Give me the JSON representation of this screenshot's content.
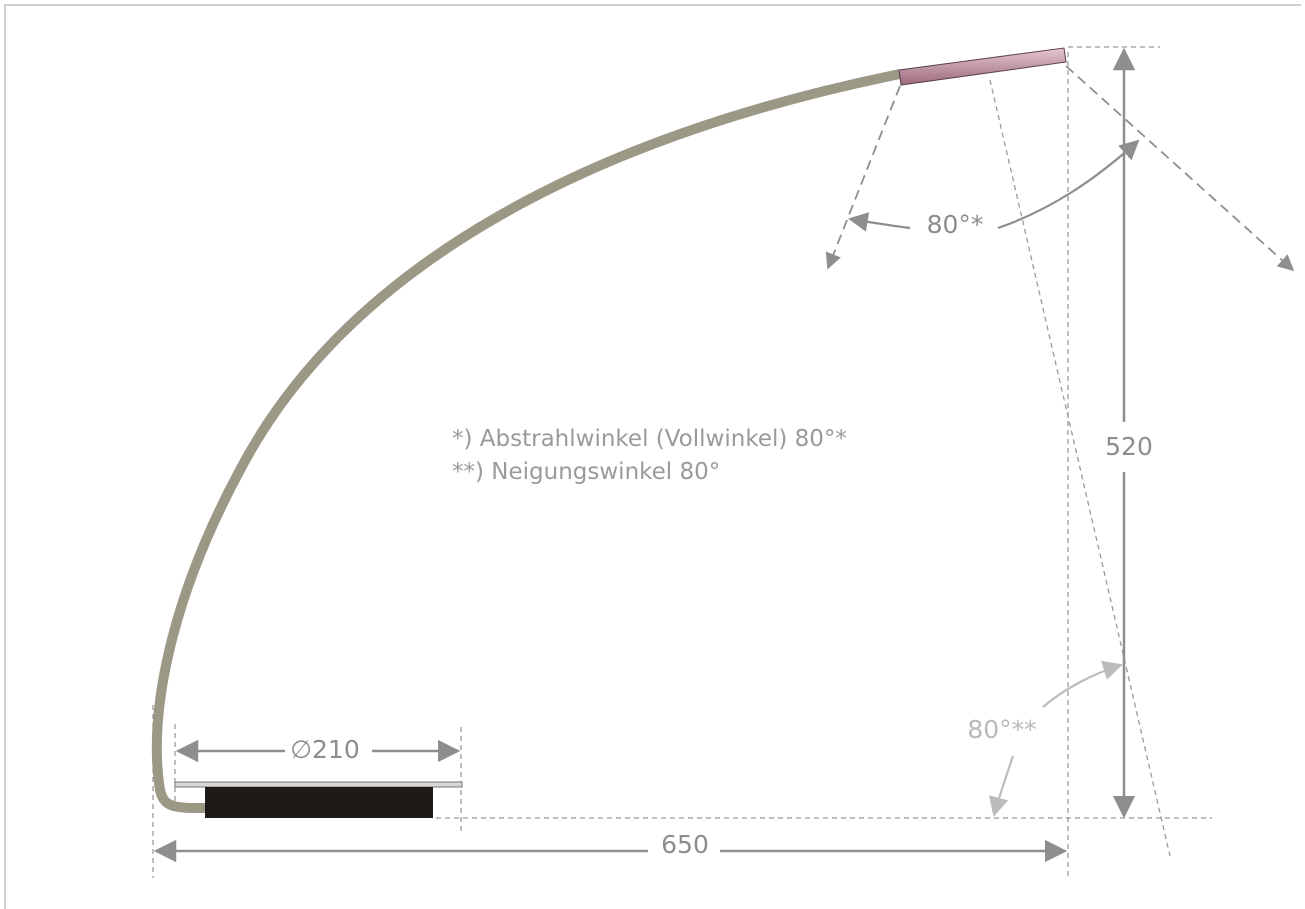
{
  "dimensions": {
    "base_diameter": "∅210",
    "total_width": "650",
    "height": "520",
    "beam_angle": "80°*",
    "tilt_angle": "80°**"
  },
  "notes": {
    "line1": "*)   Abstrahlwinkel (Vollwinkel) 80°*",
    "line2": "**) Neigungswinkel 80°"
  },
  "colors": {
    "arm": "#9b9886",
    "head_start": "#e6c7d2",
    "head_end": "#9c6a7c",
    "base": "#1e1a18",
    "dim_line": "#8e8e8e",
    "guide": "#9a9a9a",
    "light_annotation": "#b9b9b9"
  }
}
